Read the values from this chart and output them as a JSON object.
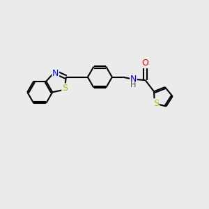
{
  "bg_color": "#ebebeb",
  "bond_color": "#000000",
  "bond_width": 1.5,
  "atom_colors": {
    "S": "#b8b800",
    "N_btz": "#0000ff",
    "N_amide": "#0000cd",
    "O": "#ff0000",
    "C": "#000000",
    "H": "#4a4a4a"
  },
  "font_size": 8.5,
  "figsize": [
    3.0,
    3.0
  ],
  "dpi": 100
}
